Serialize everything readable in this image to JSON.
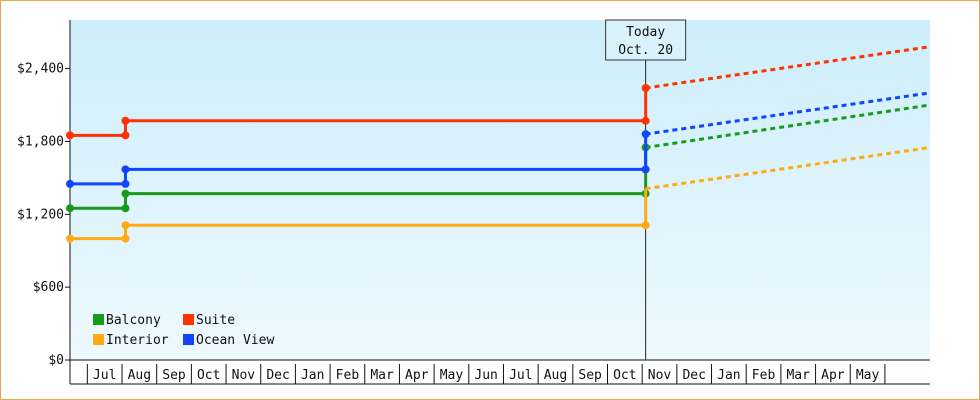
{
  "chart_data": {
    "type": "line",
    "title": "",
    "xlabel": "",
    "ylabel": "",
    "ylim": [
      0,
      2800
    ],
    "y_ticks": [
      0,
      600,
      1200,
      1800,
      2400
    ],
    "y_tick_labels": [
      "$0",
      "$600",
      "$1,200",
      "$1,800",
      "$2,400"
    ],
    "grid": false,
    "legend_position": "bottom-left",
    "x_unit": "months since start of Jun 2024",
    "x_range": [
      0,
      24.8
    ],
    "month_labels": [
      "Jul",
      "Aug",
      "Sep",
      "Oct",
      "Nov",
      "Dec",
      "Jan",
      "Feb",
      "Mar",
      "Apr",
      "May",
      "Jun",
      "Jul",
      "Aug",
      "Sep",
      "Oct",
      "Nov",
      "Dec",
      "Jan",
      "Feb",
      "Mar",
      "Apr",
      "May"
    ],
    "today": {
      "line1": "Today",
      "line2": "Oct. 20",
      "x": 16.6
    },
    "series": [
      {
        "name": "Balcony",
        "color": "#1a9a1a",
        "points": [
          [
            0,
            1250
          ],
          [
            1.6,
            1250
          ],
          [
            1.6,
            1370
          ],
          [
            16.6,
            1370
          ],
          [
            16.6,
            1750
          ]
        ],
        "markers": [
          [
            0,
            1250
          ],
          [
            1.6,
            1250
          ],
          [
            1.6,
            1370
          ],
          [
            16.6,
            1370
          ],
          [
            16.6,
            1750
          ]
        ],
        "forecast": [
          [
            16.6,
            1750
          ],
          [
            24.8,
            2100
          ]
        ]
      },
      {
        "name": "Suite",
        "color": "#ff3300",
        "points": [
          [
            0,
            1850
          ],
          [
            1.6,
            1850
          ],
          [
            1.6,
            1970
          ],
          [
            16.6,
            1970
          ],
          [
            16.6,
            2240
          ]
        ],
        "markers": [
          [
            0,
            1850
          ],
          [
            1.6,
            1850
          ],
          [
            1.6,
            1970
          ],
          [
            16.6,
            1970
          ],
          [
            16.6,
            2240
          ]
        ],
        "forecast": [
          [
            16.6,
            2240
          ],
          [
            24.8,
            2580
          ]
        ]
      },
      {
        "name": "Interior",
        "color": "#ffaa11",
        "points": [
          [
            0,
            1000
          ],
          [
            1.6,
            1000
          ],
          [
            1.6,
            1110
          ],
          [
            16.6,
            1110
          ],
          [
            16.6,
            1410
          ]
        ],
        "markers": [
          [
            0,
            1000
          ],
          [
            1.6,
            1000
          ],
          [
            1.6,
            1110
          ],
          [
            16.6,
            1110
          ]
        ],
        "forecast": [
          [
            16.6,
            1410
          ],
          [
            24.8,
            1750
          ]
        ]
      },
      {
        "name": "Ocean View",
        "color": "#1144ff",
        "points": [
          [
            0,
            1450
          ],
          [
            1.6,
            1450
          ],
          [
            1.6,
            1570
          ],
          [
            16.6,
            1570
          ],
          [
            16.6,
            1860
          ]
        ],
        "markers": [
          [
            0,
            1450
          ],
          [
            1.6,
            1450
          ],
          [
            1.6,
            1570
          ],
          [
            16.6,
            1570
          ],
          [
            16.6,
            1860
          ]
        ],
        "forecast": [
          [
            16.6,
            1860
          ],
          [
            24.8,
            2200
          ]
        ]
      }
    ]
  }
}
